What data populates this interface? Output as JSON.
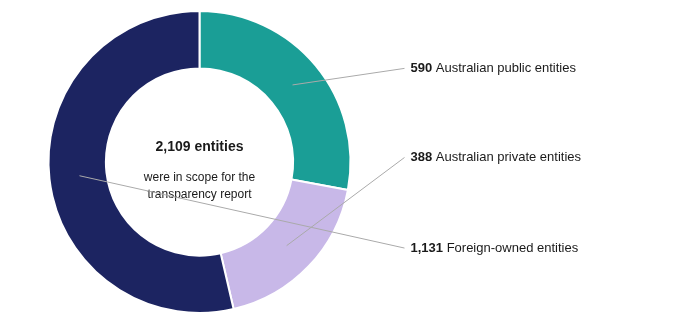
{
  "chart_data": {
    "type": "doughnut",
    "categories": [
      "Australian public entities",
      "Australian private entities",
      "Foreign-owned entities"
    ],
    "values": [
      590,
      388,
      1131
    ],
    "value_labels": [
      "590",
      "388",
      "1,131"
    ],
    "colors": [
      "#1a9e96",
      "#c8b8e8",
      "#1c2461"
    ],
    "annotations": [
      "2,109 entities",
      "were in scope for the\ntransparency report"
    ],
    "data_labels": true
  }
}
